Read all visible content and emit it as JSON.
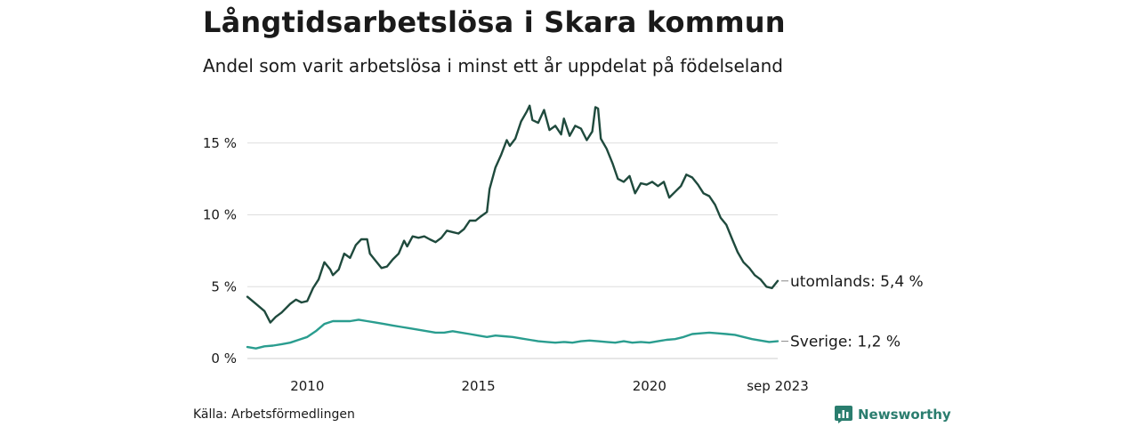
{
  "header": {
    "title": "Långtidsarbetslösa i Skara kommun",
    "subtitle": "Andel som varit arbetslösa i minst ett år uppdelat på födelseland"
  },
  "footer": {
    "source": "Källa: Arbetsförmedlingen",
    "brand": "Newsworthy"
  },
  "colors": {
    "utomlands": "#1f4a3d",
    "sverige": "#2a9d8f",
    "grid": "#dddddd"
  },
  "chart_data": {
    "type": "line",
    "title": "Långtidsarbetslösa i Skara kommun",
    "xlabel": "",
    "ylabel": "",
    "ylim": [
      0,
      18
    ],
    "xlim": [
      2008.25,
      2023.75
    ],
    "grid": true,
    "y_ticks": [
      {
        "value": 0,
        "label": "0 %"
      },
      {
        "value": 5,
        "label": "5 %"
      },
      {
        "value": 10,
        "label": "10 %"
      },
      {
        "value": 15,
        "label": "15 %"
      }
    ],
    "x_ticks": [
      {
        "value": 2010,
        "label": "2010"
      },
      {
        "value": 2015,
        "label": "2015"
      },
      {
        "value": 2020,
        "label": "2020"
      },
      {
        "value": 2023.75,
        "label": "sep 2023"
      }
    ],
    "series": [
      {
        "name": "utomlands",
        "end_label": "utomlands: 5,4 %",
        "points": [
          [
            2008.25,
            4.3
          ],
          [
            2008.5,
            3.8
          ],
          [
            2008.75,
            3.3
          ],
          [
            2008.92,
            2.5
          ],
          [
            2009.08,
            2.9
          ],
          [
            2009.25,
            3.2
          ],
          [
            2009.5,
            3.8
          ],
          [
            2009.67,
            4.1
          ],
          [
            2009.83,
            3.9
          ],
          [
            2010.0,
            4.0
          ],
          [
            2010.17,
            4.9
          ],
          [
            2010.33,
            5.5
          ],
          [
            2010.5,
            6.7
          ],
          [
            2010.67,
            6.2
          ],
          [
            2010.75,
            5.8
          ],
          [
            2010.92,
            6.2
          ],
          [
            2011.08,
            7.3
          ],
          [
            2011.25,
            7.0
          ],
          [
            2011.42,
            7.9
          ],
          [
            2011.58,
            8.3
          ],
          [
            2011.75,
            8.3
          ],
          [
            2011.83,
            7.3
          ],
          [
            2012.0,
            6.8
          ],
          [
            2012.17,
            6.3
          ],
          [
            2012.33,
            6.4
          ],
          [
            2012.5,
            6.9
          ],
          [
            2012.67,
            7.3
          ],
          [
            2012.83,
            8.2
          ],
          [
            2012.92,
            7.8
          ],
          [
            2013.08,
            8.5
          ],
          [
            2013.25,
            8.4
          ],
          [
            2013.42,
            8.5
          ],
          [
            2013.58,
            8.3
          ],
          [
            2013.75,
            8.1
          ],
          [
            2013.92,
            8.4
          ],
          [
            2014.08,
            8.9
          ],
          [
            2014.25,
            8.8
          ],
          [
            2014.42,
            8.7
          ],
          [
            2014.58,
            9.0
          ],
          [
            2014.75,
            9.6
          ],
          [
            2014.92,
            9.6
          ],
          [
            2015.08,
            9.9
          ],
          [
            2015.25,
            10.2
          ],
          [
            2015.33,
            11.8
          ],
          [
            2015.5,
            13.3
          ],
          [
            2015.67,
            14.2
          ],
          [
            2015.83,
            15.2
          ],
          [
            2015.92,
            14.8
          ],
          [
            2016.08,
            15.3
          ],
          [
            2016.25,
            16.5
          ],
          [
            2016.42,
            17.2
          ],
          [
            2016.5,
            17.6
          ],
          [
            2016.58,
            16.6
          ],
          [
            2016.75,
            16.4
          ],
          [
            2016.92,
            17.3
          ],
          [
            2017.08,
            15.9
          ],
          [
            2017.25,
            16.2
          ],
          [
            2017.42,
            15.6
          ],
          [
            2017.5,
            16.7
          ],
          [
            2017.67,
            15.5
          ],
          [
            2017.83,
            16.2
          ],
          [
            2018.0,
            16.0
          ],
          [
            2018.17,
            15.2
          ],
          [
            2018.33,
            15.8
          ],
          [
            2018.42,
            17.5
          ],
          [
            2018.5,
            17.4
          ],
          [
            2018.58,
            15.3
          ],
          [
            2018.75,
            14.6
          ],
          [
            2018.92,
            13.6
          ],
          [
            2019.08,
            12.5
          ],
          [
            2019.25,
            12.3
          ],
          [
            2019.42,
            12.7
          ],
          [
            2019.58,
            11.5
          ],
          [
            2019.75,
            12.2
          ],
          [
            2019.92,
            12.1
          ],
          [
            2020.08,
            12.3
          ],
          [
            2020.25,
            12.0
          ],
          [
            2020.42,
            12.3
          ],
          [
            2020.58,
            11.2
          ],
          [
            2020.75,
            11.6
          ],
          [
            2020.92,
            12.0
          ],
          [
            2021.08,
            12.8
          ],
          [
            2021.25,
            12.6
          ],
          [
            2021.42,
            12.1
          ],
          [
            2021.58,
            11.5
          ],
          [
            2021.75,
            11.3
          ],
          [
            2021.92,
            10.7
          ],
          [
            2022.08,
            9.8
          ],
          [
            2022.25,
            9.3
          ],
          [
            2022.42,
            8.3
          ],
          [
            2022.58,
            7.4
          ],
          [
            2022.75,
            6.7
          ],
          [
            2022.92,
            6.3
          ],
          [
            2023.08,
            5.8
          ],
          [
            2023.25,
            5.5
          ],
          [
            2023.42,
            5.0
          ],
          [
            2023.58,
            4.9
          ],
          [
            2023.75,
            5.4
          ]
        ]
      },
      {
        "name": "Sverige",
        "end_label": "Sverige: 1,2 %",
        "points": [
          [
            2008.25,
            0.8
          ],
          [
            2008.5,
            0.7
          ],
          [
            2008.75,
            0.85
          ],
          [
            2009.0,
            0.9
          ],
          [
            2009.25,
            1.0
          ],
          [
            2009.5,
            1.1
          ],
          [
            2009.75,
            1.3
          ],
          [
            2010.0,
            1.5
          ],
          [
            2010.25,
            1.9
          ],
          [
            2010.5,
            2.4
          ],
          [
            2010.75,
            2.6
          ],
          [
            2011.0,
            2.6
          ],
          [
            2011.25,
            2.6
          ],
          [
            2011.5,
            2.7
          ],
          [
            2011.75,
            2.6
          ],
          [
            2012.0,
            2.5
          ],
          [
            2012.25,
            2.4
          ],
          [
            2012.5,
            2.3
          ],
          [
            2012.75,
            2.2
          ],
          [
            2013.0,
            2.1
          ],
          [
            2013.25,
            2.0
          ],
          [
            2013.5,
            1.9
          ],
          [
            2013.75,
            1.8
          ],
          [
            2014.0,
            1.8
          ],
          [
            2014.25,
            1.9
          ],
          [
            2014.5,
            1.8
          ],
          [
            2014.75,
            1.7
          ],
          [
            2015.0,
            1.6
          ],
          [
            2015.25,
            1.5
          ],
          [
            2015.5,
            1.6
          ],
          [
            2015.75,
            1.55
          ],
          [
            2016.0,
            1.5
          ],
          [
            2016.25,
            1.4
          ],
          [
            2016.5,
            1.3
          ],
          [
            2016.75,
            1.2
          ],
          [
            2017.0,
            1.15
          ],
          [
            2017.25,
            1.1
          ],
          [
            2017.5,
            1.15
          ],
          [
            2017.75,
            1.1
          ],
          [
            2018.0,
            1.2
          ],
          [
            2018.25,
            1.25
          ],
          [
            2018.5,
            1.2
          ],
          [
            2018.75,
            1.15
          ],
          [
            2019.0,
            1.1
          ],
          [
            2019.25,
            1.2
          ],
          [
            2019.5,
            1.1
          ],
          [
            2019.75,
            1.15
          ],
          [
            2020.0,
            1.1
          ],
          [
            2020.25,
            1.2
          ],
          [
            2020.5,
            1.3
          ],
          [
            2020.75,
            1.35
          ],
          [
            2021.0,
            1.5
          ],
          [
            2021.25,
            1.7
          ],
          [
            2021.5,
            1.75
          ],
          [
            2021.75,
            1.8
          ],
          [
            2022.0,
            1.75
          ],
          [
            2022.25,
            1.7
          ],
          [
            2022.5,
            1.65
          ],
          [
            2022.75,
            1.5
          ],
          [
            2023.0,
            1.35
          ],
          [
            2023.25,
            1.25
          ],
          [
            2023.5,
            1.15
          ],
          [
            2023.75,
            1.2
          ]
        ]
      }
    ]
  }
}
